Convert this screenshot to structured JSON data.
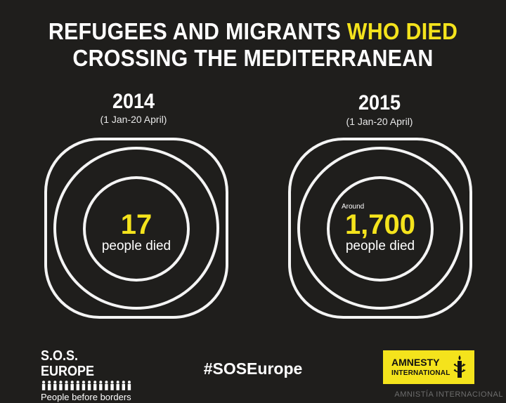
{
  "colors": {
    "background": "#1f1e1c",
    "accent": "#f4e31c",
    "ring": "#f4f4f4",
    "text": "#ffffff"
  },
  "title": {
    "line1_white": "REFUGEES AND MIGRANTS",
    "line1_yellow": "WHO DIED",
    "line2": "CROSSING THE MEDITERRANEAN"
  },
  "panels": [
    {
      "year": "2014",
      "period": "(1 Jan-20 April)",
      "qualifier": "",
      "number": "17",
      "unit": "people died",
      "deaths": 17
    },
    {
      "year": "2015",
      "period": "(1 Jan-20 April)",
      "qualifier": "Around",
      "number": "1,700",
      "unit": "people died",
      "deaths": 1700
    }
  ],
  "footer": {
    "sos_title": "S.O.S. EUROPE",
    "sos_tagline": "People before borders",
    "hashtag": "#SOSEurope",
    "logo_name": "AMNESTY",
    "logo_sub": "INTERNATIONAL",
    "logo_icon": "candle-barbed-wire-icon",
    "people_icon": "people-row-icon",
    "watermark": "AMNISTÍA INTERNACIONAL"
  }
}
